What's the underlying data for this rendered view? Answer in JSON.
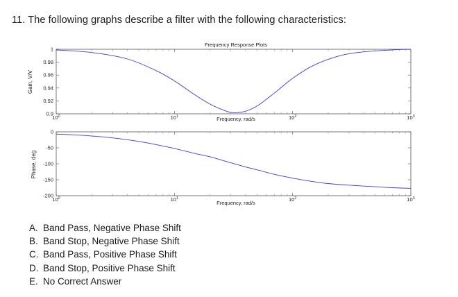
{
  "question": {
    "text": "11. The following graphs describe a filter with the following characteristics:"
  },
  "chart_data": [
    {
      "type": "line",
      "title": "Frequency Response Plots",
      "xlabel": "Frequency, rad/s",
      "ylabel": "Gain, V/V",
      "xscale": "log",
      "xlim": [
        1,
        1000
      ],
      "ylim": [
        0.9,
        1.0
      ],
      "xticks": [
        "10^0",
        "10^1",
        "10^2",
        "10^3"
      ],
      "yticks": [
        "0.9",
        "0.92",
        "0.94",
        "0.96",
        "0.98",
        "1"
      ],
      "series": [
        {
          "x": [
            1,
            2,
            4,
            7,
            10,
            15,
            20,
            25,
            30,
            35,
            40,
            50,
            70,
            100,
            150,
            250,
            400,
            700,
            1000
          ],
          "y": [
            0.999,
            0.995,
            0.985,
            0.967,
            0.951,
            0.929,
            0.915,
            0.907,
            0.902,
            0.902,
            0.904,
            0.912,
            0.932,
            0.955,
            0.975,
            0.99,
            0.996,
            0.999,
            1.0
          ]
        }
      ]
    },
    {
      "type": "line",
      "title": "",
      "xlabel": "Frequency, rad/s",
      "ylabel": "Phase, deg",
      "xscale": "log",
      "xlim": [
        1,
        1000
      ],
      "ylim": [
        -200,
        0
      ],
      "xticks": [
        "10^0",
        "10^1",
        "10^2",
        "10^3"
      ],
      "yticks": [
        "-200",
        "-150",
        "-100",
        "-50",
        "0"
      ],
      "series": [
        {
          "x": [
            1,
            1.5,
            2,
            3,
            5,
            7,
            10,
            15,
            20,
            30,
            40,
            50,
            70,
            100,
            150,
            200,
            300,
            500,
            700,
            1000
          ],
          "y": [
            -7,
            -10,
            -13,
            -19,
            -30,
            -40,
            -52,
            -68,
            -78,
            -97,
            -110,
            -119,
            -133,
            -145,
            -156,
            -162,
            -167,
            -172,
            -175,
            -177
          ]
        }
      ]
    }
  ],
  "options": [
    {
      "letter": "A.",
      "text": "Band Pass, Negative Phase Shift"
    },
    {
      "letter": "B.",
      "text": "Band Stop, Negative Phase Shift"
    },
    {
      "letter": "C.",
      "text": "Band Pass, Positive Phase Shift"
    },
    {
      "letter": "D.",
      "text": "Band Stop, Positive Phase Shift"
    },
    {
      "letter": "E.",
      "text": "No Correct Answer"
    }
  ]
}
